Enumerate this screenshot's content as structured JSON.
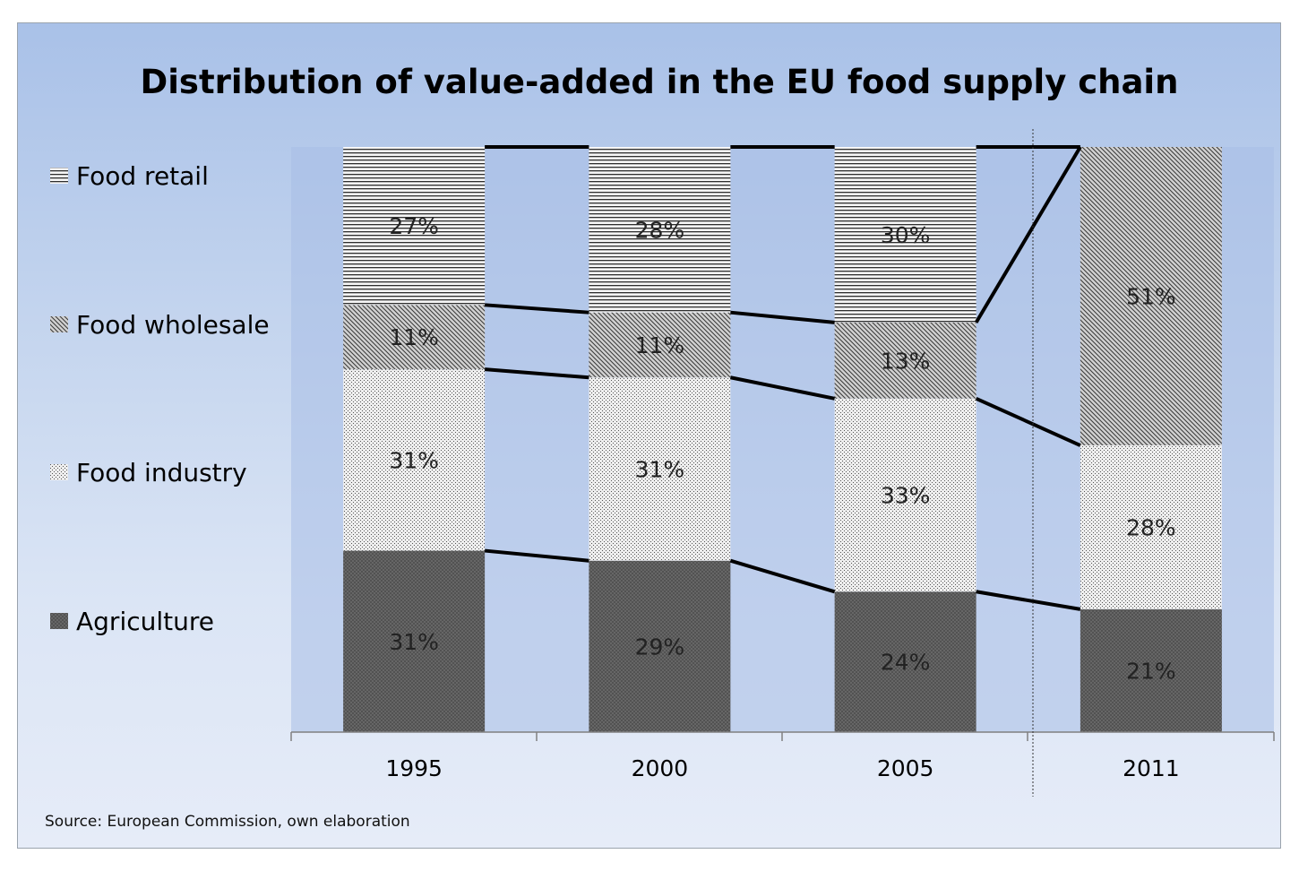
{
  "chart_data": {
    "type": "bar",
    "stacked": true,
    "normalized_percent": true,
    "title": "Distribution of value-added in the EU food supply chain",
    "categories": [
      "1995",
      "2000",
      "2005",
      "2011"
    ],
    "series": [
      {
        "name": "Agriculture",
        "pattern": "dark-crosshatch",
        "values": [
          31,
          29,
          24,
          21
        ],
        "labels": [
          "31%",
          "29%",
          "24%",
          "21%"
        ]
      },
      {
        "name": "Food industry",
        "pattern": "light-dots",
        "values": [
          31,
          31,
          33,
          28
        ],
        "labels": [
          "31%",
          "31%",
          "33%",
          "28%"
        ]
      },
      {
        "name": "Food wholesale",
        "pattern": "diagonal",
        "values": [
          11,
          11,
          13,
          51
        ],
        "labels": [
          "11%",
          "11%",
          "13%",
          "51%"
        ]
      },
      {
        "name": "Food retail",
        "pattern": "horizontal-lines",
        "values": [
          27,
          28,
          30,
          null
        ],
        "labels": [
          "27%",
          "28%",
          "30%",
          ""
        ]
      }
    ],
    "ylim": [
      0,
      100
    ],
    "xlabel": "",
    "ylabel": "",
    "grid": false,
    "legend_position": "left",
    "source": "Source:  European Commission, own elaboration"
  },
  "colors": {
    "agriculture": "#707070",
    "food_industry": "#e2e2e2",
    "food_wholesale": "#8a8a8a",
    "food_retail": "#f2f2f2",
    "connector": "#000000"
  }
}
